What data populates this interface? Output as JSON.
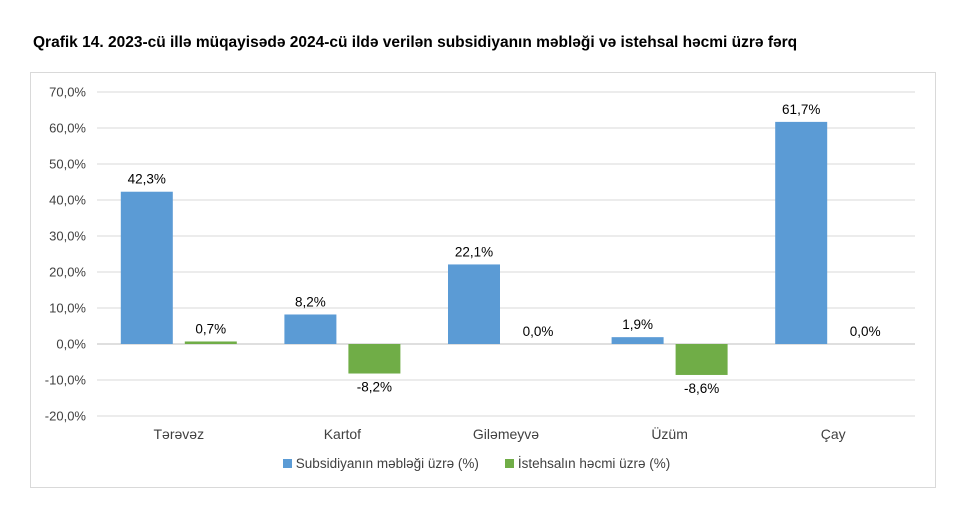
{
  "title": "Qrafik 14. 2023-cü illə müqayisədə 2024-cü ildə verilən subsidiyanın məbləği və istehsal həcmi üzrə fərq",
  "chart_data": {
    "type": "bar",
    "categories": [
      "Tərəvəz",
      "Kartof",
      "Giləmeyvə",
      "Üzüm",
      "Çay"
    ],
    "series": [
      {
        "name": "Subsidiyanın məbləği üzrə (%)",
        "values": [
          42.3,
          8.2,
          22.1,
          1.9,
          61.7
        ],
        "labels": [
          "42,3%",
          "8,2%",
          "22,1%",
          "1,9%",
          "61,7%"
        ],
        "color": "#5b9bd5"
      },
      {
        "name": "İstehsalın həcmi üzrə (%)",
        "values": [
          0.7,
          -8.2,
          0.0,
          -8.6,
          0.0
        ],
        "labels": [
          "0,7%",
          "-8,2%",
          "0,0%",
          "-8,6%",
          "0,0%"
        ],
        "color": "#70ad47"
      }
    ],
    "ylim": [
      -20,
      70
    ],
    "yticks": [
      -20,
      -10,
      0,
      10,
      20,
      30,
      40,
      50,
      60,
      70
    ],
    "ytick_labels": [
      "-20,0%",
      "-10,0%",
      "0,0%",
      "10,0%",
      "20,0%",
      "30,0%",
      "40,0%",
      "50,0%",
      "60,0%",
      "70,0%"
    ],
    "grid": true,
    "legend": "bottom"
  }
}
